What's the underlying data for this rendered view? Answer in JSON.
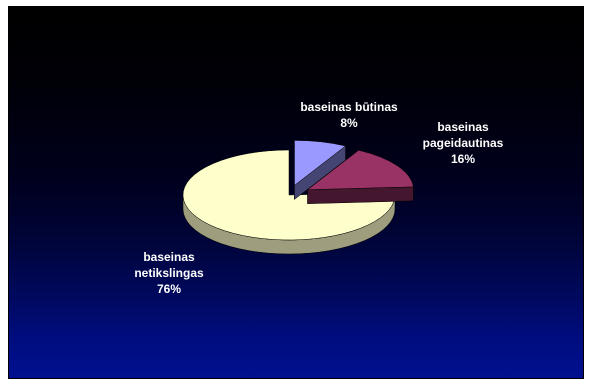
{
  "chart_data": {
    "type": "pie",
    "style": "3d-exploded",
    "title": "",
    "series": [
      {
        "label_lines": [
          "baseinas būtinas",
          "8%"
        ],
        "value": 8,
        "color": "#9999ff",
        "exploded": true
      },
      {
        "label_lines": [
          "baseinas",
          "pageidautinas",
          "16%"
        ],
        "value": 16,
        "color": "#993366",
        "exploded": true
      },
      {
        "label_lines": [
          "baseinas",
          "netikslingas",
          "76%"
        ],
        "value": 76,
        "color": "#ffffcc",
        "exploded": false
      }
    ],
    "colors": {
      "background_top": "#000000",
      "background_bottom": "#01108f",
      "label_text": "#ffffff"
    }
  }
}
